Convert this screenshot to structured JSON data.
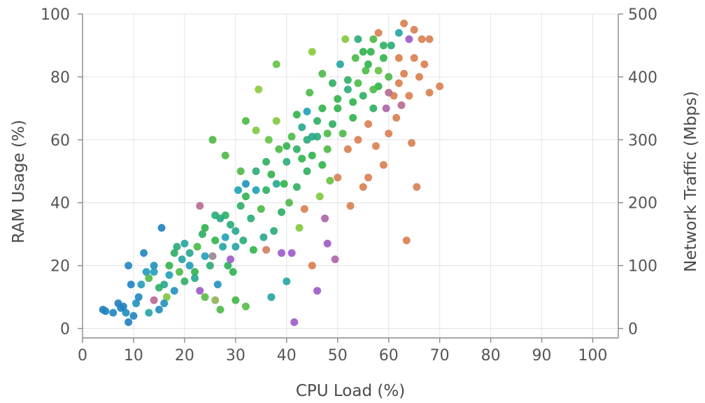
{
  "chart_data": {
    "type": "scatter",
    "xlabel": "CPU Load (%)",
    "ylabel": "RAM Usage (%)",
    "y2label": "Network Traffic (Mbps)",
    "xlim": [
      0,
      105
    ],
    "ylim": [
      -3,
      100
    ],
    "y2lim": [
      -15,
      500
    ],
    "x_ticks": [
      0,
      10,
      20,
      30,
      40,
      50,
      60,
      70,
      80,
      90,
      100
    ],
    "y_ticks": [
      0,
      20,
      40,
      60,
      80,
      100
    ],
    "y2_ticks": [
      0,
      100,
      200,
      300,
      400,
      500
    ],
    "grid": true,
    "legend": false,
    "color_encoding_stops": [
      {
        "t": 0.0,
        "color": "#1f77c4"
      },
      {
        "t": 0.3,
        "color": "#1fa0b8"
      },
      {
        "t": 0.55,
        "color": "#2fb24a"
      },
      {
        "t": 0.72,
        "color": "#8acb3a"
      },
      {
        "t": 0.85,
        "color": "#9b59c6"
      },
      {
        "t": 1.0,
        "color": "#f08a24"
      }
    ],
    "points": [
      [
        4,
        6,
        0.05
      ],
      [
        4.5,
        5.5,
        0.08
      ],
      [
        6,
        5,
        0.1
      ],
      [
        7,
        8,
        0.07
      ],
      [
        7.5,
        6.5,
        0.12
      ],
      [
        8,
        7,
        0.09
      ],
      [
        8.5,
        5,
        0.15
      ],
      [
        9,
        2,
        0.05
      ],
      [
        9,
        20,
        0.1
      ],
      [
        9.5,
        14,
        0.08
      ],
      [
        10,
        4,
        0.1
      ],
      [
        10.5,
        8,
        0.2
      ],
      [
        11,
        10,
        0.12
      ],
      [
        11.5,
        14,
        0.3
      ],
      [
        12,
        24,
        0.1
      ],
      [
        12.5,
        18,
        0.25
      ],
      [
        13,
        5,
        0.35
      ],
      [
        13,
        16,
        0.6
      ],
      [
        14,
        9,
        0.9
      ],
      [
        14,
        20,
        0.2
      ],
      [
        15,
        6,
        0.15
      ],
      [
        15,
        13,
        0.5
      ],
      [
        15.5,
        32,
        0.05
      ],
      [
        16,
        14,
        0.4
      ],
      [
        16.5,
        10,
        0.7
      ],
      [
        17,
        17,
        0.3
      ],
      [
        17,
        20,
        0.55
      ],
      [
        18,
        12,
        0.2
      ],
      [
        18.5,
        26,
        0.45
      ],
      [
        19,
        18,
        0.6
      ],
      [
        19.5,
        22,
        0.35
      ],
      [
        20,
        15,
        0.5
      ],
      [
        21,
        20,
        0.25
      ],
      [
        21,
        24,
        0.4
      ],
      [
        22,
        18,
        0.55
      ],
      [
        22.5,
        26,
        0.6
      ],
      [
        23,
        12,
        0.85
      ],
      [
        23,
        39,
        0.9
      ],
      [
        23.5,
        30,
        0.5
      ],
      [
        24,
        23,
        0.3
      ],
      [
        24,
        10,
        0.62
      ],
      [
        25,
        20,
        0.45
      ],
      [
        25.5,
        60,
        0.6
      ],
      [
        25.5,
        23,
        0.8
      ],
      [
        26,
        9,
        0.75
      ],
      [
        26,
        28,
        0.55
      ],
      [
        26.5,
        14,
        0.2
      ],
      [
        27,
        35,
        0.4
      ],
      [
        27,
        6,
        0.6
      ],
      [
        27.5,
        26,
        0.35
      ],
      [
        28,
        29,
        0.3
      ],
      [
        28,
        55,
        0.6
      ],
      [
        28.5,
        20,
        0.5
      ],
      [
        29,
        33,
        0.45
      ],
      [
        29,
        22,
        0.85
      ],
      [
        29.5,
        18,
        0.55
      ],
      [
        30,
        31,
        0.4
      ],
      [
        30,
        9,
        0.58
      ],
      [
        30.5,
        44,
        0.3
      ],
      [
        31,
        39,
        0.5
      ],
      [
        31,
        50,
        0.6
      ],
      [
        31.5,
        28,
        0.45
      ],
      [
        32,
        66,
        0.6
      ],
      [
        32,
        46,
        0.2
      ],
      [
        32,
        7,
        0.62
      ],
      [
        33,
        35,
        0.45
      ],
      [
        33.5,
        25,
        0.55
      ],
      [
        34,
        63,
        0.7
      ],
      [
        34,
        44,
        0.3
      ],
      [
        34.5,
        76,
        0.72
      ],
      [
        35,
        38,
        0.6
      ],
      [
        35.5,
        29,
        0.4
      ],
      [
        36,
        44,
        0.5
      ],
      [
        36,
        25,
        0.95
      ],
      [
        36.5,
        60,
        0.65
      ],
      [
        37,
        10,
        0.35
      ],
      [
        37,
        49,
        0.55
      ],
      [
        37.5,
        31,
        0.45
      ],
      [
        38,
        84,
        0.65
      ],
      [
        38,
        66,
        0.7
      ],
      [
        38.5,
        57,
        0.6
      ],
      [
        39,
        37,
        0.5
      ],
      [
        39,
        24,
        0.85
      ],
      [
        39.5,
        46,
        0.55
      ],
      [
        40,
        15,
        0.35
      ],
      [
        40,
        53,
        0.45
      ],
      [
        40.5,
        40,
        0.6
      ],
      [
        41,
        61,
        0.6
      ],
      [
        41,
        24,
        0.85
      ],
      [
        41.5,
        2,
        0.85
      ],
      [
        42,
        45,
        0.5
      ],
      [
        42,
        68,
        0.55
      ],
      [
        42.5,
        32,
        0.7
      ],
      [
        43,
        54,
        0.55
      ],
      [
        43,
        64,
        0.4
      ],
      [
        43.5,
        38,
        0.96
      ],
      [
        44,
        50,
        0.5
      ],
      [
        44,
        69,
        0.3
      ],
      [
        44.5,
        75,
        0.6
      ],
      [
        45,
        88,
        0.72
      ],
      [
        45,
        55,
        0.55
      ],
      [
        45,
        20,
        0.96
      ],
      [
        46,
        12,
        0.85
      ],
      [
        46,
        61,
        0.45
      ],
      [
        46.5,
        42,
        0.7
      ],
      [
        47,
        52,
        0.55
      ],
      [
        47,
        81,
        0.6
      ],
      [
        47.5,
        35,
        0.88
      ],
      [
        48,
        57,
        0.6
      ],
      [
        48,
        27,
        0.85
      ],
      [
        48.5,
        47,
        0.65
      ],
      [
        49,
        65,
        0.5
      ],
      [
        49.5,
        22,
        0.88
      ],
      [
        50,
        48,
        0.96
      ],
      [
        50,
        73,
        0.55
      ],
      [
        50.5,
        84,
        0.35
      ],
      [
        51,
        62,
        0.6
      ],
      [
        51.5,
        92,
        0.7
      ],
      [
        52,
        57,
        0.96
      ],
      [
        52,
        76,
        0.45
      ],
      [
        52.5,
        39,
        0.96
      ],
      [
        53,
        67,
        0.55
      ],
      [
        53.5,
        86,
        0.6
      ],
      [
        54,
        60,
        0.96
      ],
      [
        54,
        92,
        0.45
      ],
      [
        55,
        45,
        0.96
      ],
      [
        55,
        74,
        0.5
      ],
      [
        55.5,
        82,
        0.6
      ],
      [
        56,
        65,
        0.96
      ],
      [
        56,
        48,
        0.96
      ],
      [
        56.5,
        88,
        0.55
      ],
      [
        57,
        70,
        0.5
      ],
      [
        57,
        92,
        0.6
      ],
      [
        57.5,
        58,
        0.96
      ],
      [
        58,
        77,
        0.55
      ],
      [
        58,
        94,
        0.96
      ],
      [
        59,
        52,
        0.96
      ],
      [
        59,
        86,
        0.55
      ],
      [
        59.5,
        70,
        0.88
      ],
      [
        60,
        62,
        0.96
      ],
      [
        60,
        80,
        0.6
      ],
      [
        60.5,
        90,
        0.45
      ],
      [
        61,
        74,
        0.96
      ],
      [
        61.5,
        67,
        0.96
      ],
      [
        62,
        86,
        0.96
      ],
      [
        62,
        94,
        0.35
      ],
      [
        62.5,
        71,
        0.9
      ],
      [
        63,
        81,
        0.96
      ],
      [
        63,
        97,
        0.96
      ],
      [
        63.5,
        28,
        0.96
      ],
      [
        64,
        74,
        0.96
      ],
      [
        64,
        92,
        0.85
      ],
      [
        64.5,
        59,
        0.96
      ],
      [
        65,
        86,
        0.96
      ],
      [
        65,
        95,
        0.96
      ],
      [
        65.5,
        45,
        0.96
      ],
      [
        66,
        80,
        0.96
      ],
      [
        66.5,
        92,
        0.96
      ],
      [
        67,
        84,
        0.96
      ],
      [
        68,
        75,
        0.96
      ],
      [
        68,
        92,
        0.96
      ],
      [
        70,
        77,
        0.96
      ],
      [
        14,
        18,
        0.3
      ],
      [
        16,
        8,
        0.2
      ],
      [
        18,
        24,
        0.5
      ],
      [
        20,
        27,
        0.35
      ],
      [
        22,
        16,
        0.4
      ],
      [
        24,
        32,
        0.55
      ],
      [
        26,
        36,
        0.45
      ],
      [
        28,
        36,
        0.5
      ],
      [
        30,
        26,
        0.35
      ],
      [
        32,
        42,
        0.55
      ],
      [
        34,
        50,
        0.45
      ],
      [
        36,
        53,
        0.5
      ],
      [
        38,
        46,
        0.4
      ],
      [
        40,
        58,
        0.55
      ],
      [
        42,
        57,
        0.5
      ],
      [
        44,
        60,
        0.45
      ],
      [
        46,
        66,
        0.5
      ],
      [
        48,
        62,
        0.6
      ],
      [
        50,
        70,
        0.55
      ],
      [
        52,
        79,
        0.5
      ],
      [
        54,
        78,
        0.6
      ],
      [
        56,
        84,
        0.55
      ],
      [
        58,
        82,
        0.65
      ],
      [
        60,
        75,
        0.9
      ],
      [
        62,
        78,
        0.96
      ],
      [
        45,
        61,
        0.4
      ],
      [
        47,
        70,
        0.55
      ],
      [
        49,
        78,
        0.5
      ],
      [
        53,
        72,
        0.55
      ],
      [
        55,
        88,
        0.55
      ],
      [
        57,
        76,
        0.6
      ],
      [
        59,
        90,
        0.5
      ]
    ]
  }
}
